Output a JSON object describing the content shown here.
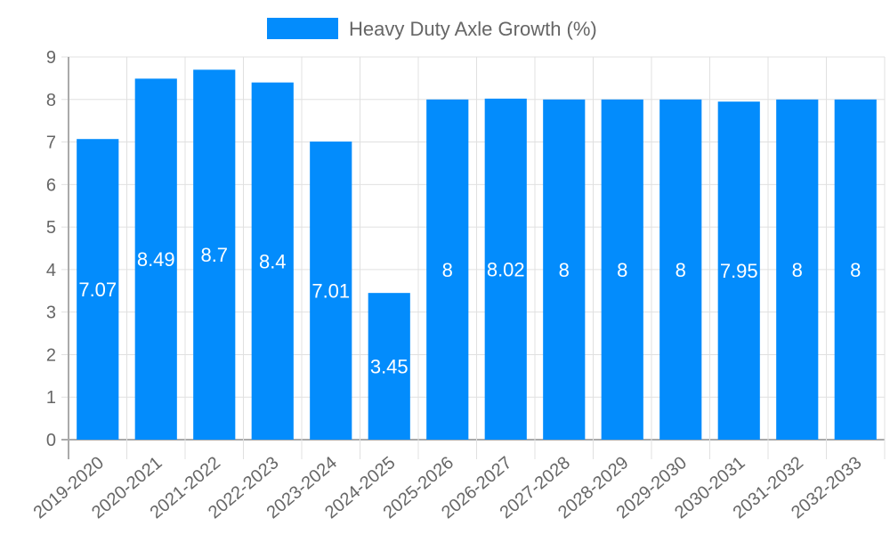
{
  "chart_data": {
    "type": "bar",
    "title": "",
    "xlabel": "",
    "ylabel": "",
    "ylim": [
      0,
      9
    ],
    "yticks": [
      0,
      1,
      2,
      3,
      4,
      5,
      6,
      7,
      8,
      9
    ],
    "grid": true,
    "legend_position": "top",
    "categories": [
      "2019-2020",
      "2020-2021",
      "2021-2022",
      "2022-2023",
      "2023-2024",
      "2024-2025",
      "2025-2026",
      "2026-2027",
      "2027-2028",
      "2028-2029",
      "2029-2030",
      "2030-2031",
      "2031-2032",
      "2032-2033"
    ],
    "series": [
      {
        "name": "Heavy Duty Axle Growth (%)",
        "color": "#038cfc",
        "values": [
          7.07,
          8.49,
          8.7,
          8.4,
          7.01,
          3.45,
          8,
          8.02,
          8,
          8,
          8,
          7.95,
          8,
          8
        ]
      }
    ]
  },
  "legend": {
    "label": "Heavy Duty Axle Growth (%)",
    "color": "#038cfc"
  }
}
